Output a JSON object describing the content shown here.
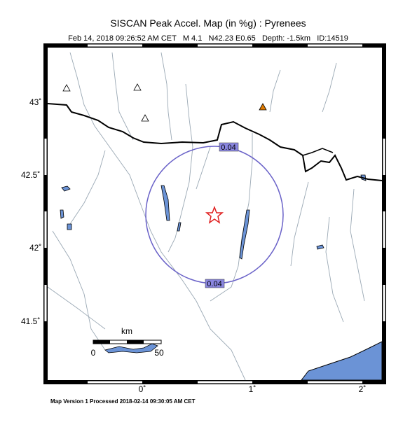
{
  "header": {
    "title": "SISCAN Peak Accel. Map (in %g) : Pyrenees",
    "subtitle": "Feb 14, 2018 09:26:52 AM CET   M 4.1   N42.23 E0.65   Depth: -1.5km   ID:14519"
  },
  "map": {
    "lat_labels": [
      "43˚",
      "42.5˚",
      "42˚",
      "41.5˚"
    ],
    "lon_labels": [
      "0˚",
      "1˚",
      "2˚"
    ],
    "contour_labels": [
      "0.04",
      "0.04"
    ],
    "scale_bar": {
      "unit": "km",
      "labels": [
        "0",
        "50"
      ]
    }
  },
  "footer": "Map Version 1 Processed 2018-02-14 09:30:05 AM CET"
}
